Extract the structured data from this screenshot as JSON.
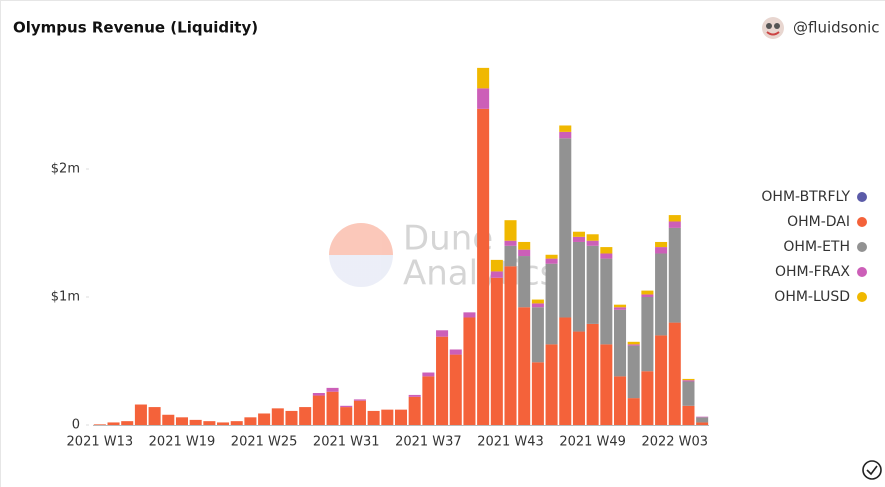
{
  "title": "Olympus Revenue (Liquidity)",
  "author": "@fluidsonic",
  "watermark": [
    "Dune",
    "Analytics"
  ],
  "chart_data": {
    "type": "stacked_bar",
    "categories": [
      "2021 W13",
      null,
      null,
      null,
      null,
      null,
      "2021 W19",
      null,
      null,
      null,
      null,
      null,
      "2021 W25",
      null,
      null,
      null,
      null,
      null,
      "2021 W31",
      null,
      null,
      null,
      null,
      null,
      "2021 W37",
      null,
      null,
      null,
      null,
      null,
      "2021 W43",
      null,
      null,
      null,
      null,
      null,
      "2021 W49",
      null,
      null,
      null,
      null,
      null,
      "2022 W03",
      null,
      null
    ],
    "series": [
      {
        "name": "OHM-BTRFLY",
        "color": "#5b5ba8",
        "values": [
          0,
          0,
          0,
          0,
          0,
          0,
          0,
          0,
          0,
          0,
          0,
          0,
          0,
          0,
          0,
          0,
          0,
          0,
          0,
          0,
          0,
          0,
          0,
          0,
          0,
          0,
          0,
          0,
          0,
          0,
          0,
          0,
          0,
          0,
          0,
          0,
          0,
          0,
          0,
          0,
          0,
          0,
          0,
          0,
          0
        ]
      },
      {
        "name": "OHM-DAI",
        "color": "#f4623a",
        "values": [
          0.005,
          0.02,
          0.03,
          0.16,
          0.14,
          0.08,
          0.06,
          0.04,
          0.03,
          0.02,
          0.03,
          0.06,
          0.09,
          0.13,
          0.11,
          0.14,
          0.23,
          0.26,
          0.14,
          0.19,
          0.11,
          0.12,
          0.12,
          0.22,
          0.38,
          0.69,
          0.55,
          0.84,
          2.47,
          1.15,
          1.24,
          0.92,
          0.49,
          0.63,
          0.84,
          0.73,
          0.79,
          0.63,
          0.38,
          0.21,
          0.42,
          0.7,
          0.8,
          0.15,
          0.02
        ]
      },
      {
        "name": "OHM-ETH",
        "color": "#929292",
        "values": [
          0,
          0,
          0,
          0,
          0,
          0,
          0,
          0,
          0,
          0,
          0,
          0,
          0,
          0,
          0,
          0,
          0,
          0,
          0,
          0,
          0,
          0,
          0,
          0,
          0,
          0,
          0,
          0,
          0,
          0,
          0.16,
          0.4,
          0.43,
          0.63,
          1.4,
          0.7,
          0.61,
          0.67,
          0.52,
          0.41,
          0.58,
          0.64,
          0.74,
          0.19,
          0.04
        ]
      },
      {
        "name": "OHM-FRAX",
        "color": "#cc5fb8",
        "values": [
          0,
          0,
          0,
          0,
          0,
          0,
          0,
          0,
          0,
          0,
          0,
          0,
          0,
          0,
          0,
          0,
          0.02,
          0.03,
          0.01,
          0.01,
          0,
          0,
          0,
          0.015,
          0.03,
          0.05,
          0.04,
          0.04,
          0.16,
          0.05,
          0.04,
          0.05,
          0.03,
          0.04,
          0.05,
          0.04,
          0.04,
          0.04,
          0.02,
          0.01,
          0.02,
          0.05,
          0.05,
          0.01,
          0.005
        ]
      },
      {
        "name": "OHM-LUSD",
        "color": "#f0b800",
        "values": [
          0,
          0,
          0,
          0,
          0,
          0,
          0,
          0,
          0,
          0,
          0,
          0,
          0,
          0,
          0,
          0,
          0,
          0,
          0,
          0,
          0,
          0,
          0,
          0,
          0,
          0,
          0,
          0,
          0.16,
          0.09,
          0.16,
          0.06,
          0.03,
          0.03,
          0.05,
          0.04,
          0.05,
          0.05,
          0.02,
          0.02,
          0.03,
          0.04,
          0.05,
          0.01,
          0
        ]
      }
    ],
    "ylim": [
      0,
      2.9
    ],
    "yticks": [
      {
        "value": 0,
        "label": "0"
      },
      {
        "value": 1,
        "label": "$1m"
      },
      {
        "value": 2,
        "label": "$2m"
      }
    ],
    "grid": false,
    "legend": "right"
  }
}
